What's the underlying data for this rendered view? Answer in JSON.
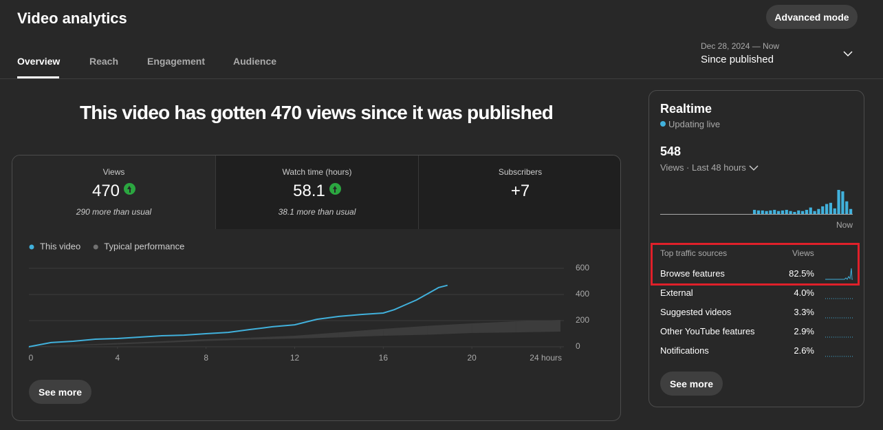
{
  "header": {
    "title": "Video analytics",
    "advanced_button": "Advanced mode",
    "tabs": [
      "Overview",
      "Reach",
      "Engagement",
      "Audience"
    ],
    "date_range": "Dec 28, 2024 — Now",
    "period": "Since published"
  },
  "headline": "This video has gotten 470 views since it was published",
  "metrics": [
    {
      "label": "Views",
      "value": "470",
      "note": "290 more than usual"
    },
    {
      "label": "Watch time (hours)",
      "value": "58.1",
      "note": "38.1 more than usual"
    },
    {
      "label": "Subscribers",
      "value": "+7"
    }
  ],
  "see_more": "See more",
  "chart_data": [
    {
      "type": "line",
      "series": [
        {
          "name": "This video",
          "color": "#41b1dc",
          "x": [
            0,
            1,
            2,
            3,
            4,
            5,
            6,
            7,
            8,
            9,
            10,
            11,
            12,
            13,
            14,
            15,
            16,
            16.5,
            17,
            17.5,
            18,
            18.5,
            18.9
          ],
          "values": [
            0,
            32,
            42,
            58,
            63,
            74,
            84,
            89,
            100,
            110,
            132,
            153,
            168,
            210,
            232,
            247,
            258,
            284,
            321,
            358,
            405,
            453,
            470
          ]
        },
        {
          "name": "Typical performance",
          "color": "#3c3c3c",
          "legend_color": "#717171",
          "x": [
            0,
            2,
            4,
            6,
            8,
            10,
            12,
            14,
            16,
            18,
            20,
            22,
            24
          ],
          "low": [
            0,
            8,
            18,
            30,
            44,
            55,
            63,
            72,
            84,
            92,
            105,
            110,
            116
          ],
          "high": [
            0,
            14,
            28,
            42,
            58,
            70,
            84,
            110,
            137,
            160,
            179,
            195,
            205
          ]
        }
      ],
      "xlim": [
        0,
        24
      ],
      "xticks": [
        0,
        4,
        8,
        12,
        16,
        20,
        {
          "value": 24,
          "label": "24 hours"
        }
      ],
      "ylim": [
        0,
        600
      ],
      "yticks": [
        0,
        200,
        400,
        600
      ],
      "grid": true
    },
    {
      "type": "bar",
      "color": "#41b1dc",
      "x_label": "Now",
      "values": [
        0,
        0,
        0,
        0,
        0,
        0,
        0,
        0,
        0,
        0,
        0,
        0,
        0,
        0,
        0,
        0,
        0,
        0,
        0,
        0,
        0,
        0,
        0,
        14,
        12,
        12,
        10,
        12,
        14,
        10,
        12,
        14,
        10,
        7,
        12,
        10,
        14,
        22,
        10,
        17,
        26,
        34,
        38,
        19,
        82,
        77,
        43,
        17
      ]
    }
  ],
  "realtime": {
    "title": "Realtime",
    "status": "Updating live",
    "value": "548",
    "metric": "Views · Last 48 hours"
  },
  "traffic": {
    "header": [
      "Top traffic sources",
      "Views"
    ],
    "rows": [
      [
        "Browse features",
        "82.5%"
      ],
      [
        "External",
        "4.0%"
      ],
      [
        "Suggested videos",
        "3.3%"
      ],
      [
        "Other YouTube features",
        "2.9%"
      ],
      [
        "Notifications",
        "2.6%"
      ]
    ]
  }
}
